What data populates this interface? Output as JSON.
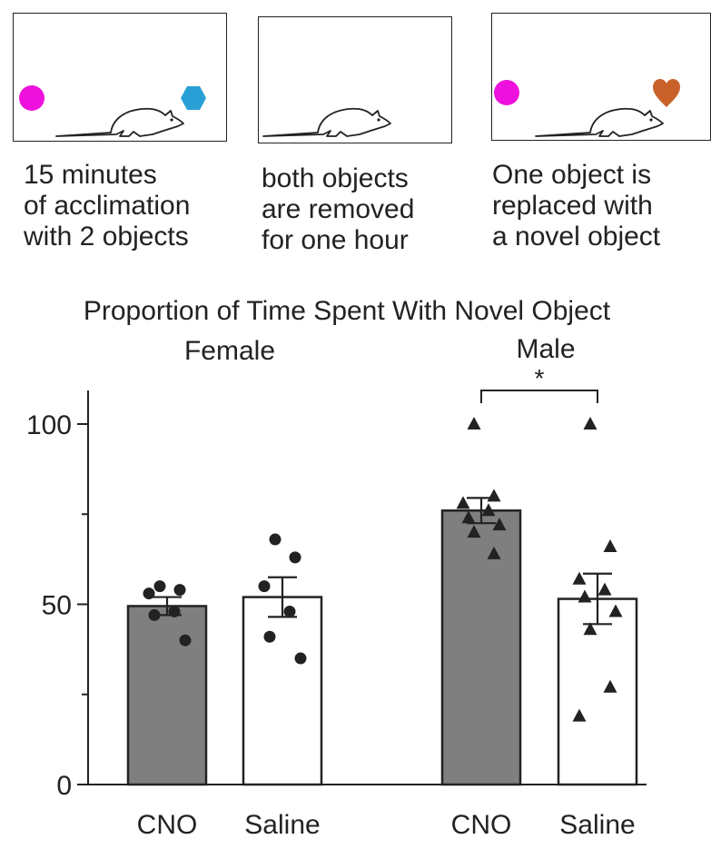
{
  "colors": {
    "left_object": "#ee11dd",
    "right_object_step1": "#2a9fd6",
    "novel_object": "#c8622a",
    "cno_bar": "#7f7f7f",
    "saline_bar": "#ffffff",
    "ink": "#222222"
  },
  "steps": [
    {
      "caption": [
        "15 minutes",
        "of acclimation",
        "with 2 objects"
      ],
      "left_object_icon": "circle-icon",
      "right_object_icon": "hexagon-icon"
    },
    {
      "caption": [
        "both objects",
        "are removed",
        "for one hour"
      ],
      "left_object_icon": "",
      "right_object_icon": ""
    },
    {
      "caption": [
        "One object is",
        "replaced with",
        "a novel object"
      ],
      "left_object_icon": "circle-icon",
      "right_object_icon": "heart-icon"
    }
  ],
  "chart_data": {
    "type": "bar",
    "title": "Proportion of Time Spent With Novel Object",
    "groups": [
      "Female",
      "Male"
    ],
    "categories": [
      "CNO",
      "Saline",
      "CNO",
      "Saline"
    ],
    "ylim": [
      0,
      110
    ],
    "yticks": [
      0,
      50,
      100
    ],
    "minor_yticks": [
      25,
      75
    ],
    "grid": false,
    "bars": [
      {
        "group": "Female",
        "label": "CNO",
        "mean": 49.5,
        "sem": 2.5,
        "marker": "circle",
        "points": [
          55,
          54,
          53,
          48,
          47,
          40
        ]
      },
      {
        "group": "Female",
        "label": "Saline",
        "mean": 52,
        "sem": 5.5,
        "marker": "circle",
        "points": [
          68,
          63,
          55,
          48,
          41,
          35
        ]
      },
      {
        "group": "Male",
        "label": "CNO",
        "mean": 76,
        "sem": 3.5,
        "marker": "triangle",
        "points": [
          100,
          80,
          78,
          76,
          74,
          72,
          70,
          64
        ]
      },
      {
        "group": "Male",
        "label": "Saline",
        "mean": 51.5,
        "sem": 7,
        "marker": "triangle",
        "points": [
          100,
          66,
          57,
          54,
          52,
          48,
          43,
          27,
          19
        ]
      }
    ],
    "significance": [
      {
        "between": [
          2,
          3
        ],
        "label": "*"
      }
    ]
  }
}
